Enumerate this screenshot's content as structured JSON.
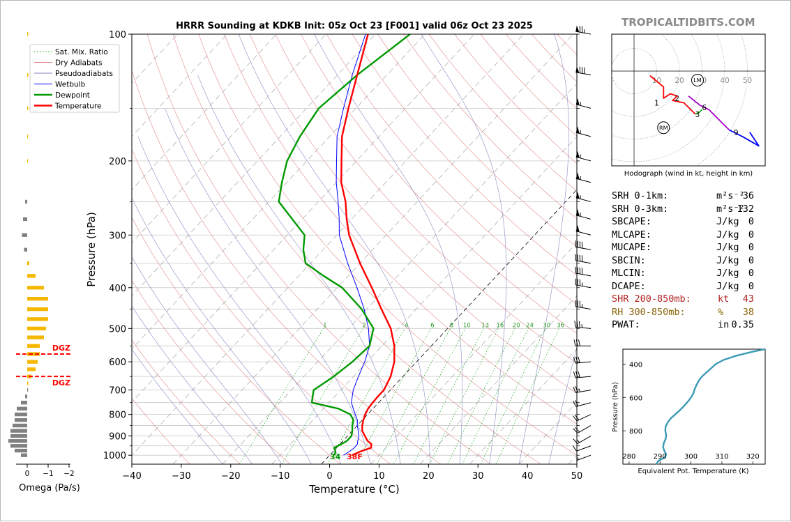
{
  "title": "HRRR Sounding at KDKB Init: 05z Oct 23 [F001] valid 06z Oct 23 2025",
  "logo": "TROPICALTIDBITS.COM",
  "colors": {
    "temperature": "#ff0000",
    "dewpoint": "#009900",
    "wetbulb": "#0000ff",
    "dry_adiabat": "#e08080",
    "pseudoadiabat": "#8080c0",
    "mixing_ratio": "#22aa22",
    "omega_up": "#f5b800",
    "omega_down": "#808080",
    "dgz": "#ff0000",
    "theta_e": "#3a9ab5"
  },
  "chart_data": [
    {
      "type": "line",
      "name": "skewt",
      "xlabel": "Temperature (°C)",
      "ylabel": "Pressure (hPa)",
      "xlim": [
        -40,
        50
      ],
      "ylim": [
        1050,
        100
      ],
      "x_ticks": [
        "−40",
        "−30",
        "−20",
        "−10",
        "0",
        "10",
        "20",
        "30",
        "40",
        "50"
      ],
      "x_tick_values": [
        -40,
        -30,
        -20,
        -10,
        0,
        10,
        20,
        30,
        40,
        50
      ],
      "y_ticks": [
        1000,
        900,
        800,
        700,
        600,
        500,
        400,
        300,
        200,
        100
      ],
      "legend": [
        "Sat. Mix. Ratio",
        "Dry Adiabats",
        "Pseudoadiabats",
        "Wetbulb",
        "Dewpoint",
        "Temperature"
      ],
      "legend_location": "upper-left",
      "mixing_ratio_labels": [
        "1",
        "2",
        "4",
        "6",
        "8",
        "10",
        "13",
        "16",
        "20",
        "24",
        "30",
        "36"
      ],
      "surface_dewpoint_label": "34",
      "surface_temperature_label": "38F",
      "temperature": {
        "p": [
          1000,
          980,
          960,
          940,
          925,
          900,
          875,
          850,
          825,
          800,
          775,
          750,
          725,
          700,
          650,
          600,
          550,
          500,
          450,
          400,
          350,
          300,
          275,
          250,
          225,
          200,
          175,
          150,
          125,
          100
        ],
        "t": [
          4.5,
          5.5,
          7.0,
          6.3,
          5.0,
          3.5,
          2.0,
          1.0,
          0.2,
          -0.5,
          -1.0,
          -1.2,
          -1.3,
          -1.3,
          -2.5,
          -4.5,
          -7.5,
          -11.5,
          -17.0,
          -23.0,
          -30.0,
          -37.5,
          -41.0,
          -44.5,
          -49.0,
          -53.0,
          -57.5,
          -61.5,
          -66.0,
          -71.5
        ]
      },
      "dewpoint": {
        "p": [
          1000,
          980,
          960,
          940,
          925,
          900,
          875,
          850,
          825,
          800,
          775,
          750,
          725,
          700,
          650,
          600,
          550,
          500,
          450,
          400,
          375,
          350,
          325,
          300,
          275,
          250,
          225,
          200,
          175,
          150,
          125,
          100
        ],
        "td": [
          1.0,
          0.5,
          -0.5,
          0.3,
          0.8,
          0.8,
          0.0,
          -1.0,
          -1.8,
          -3.5,
          -7.0,
          -13.5,
          -14.5,
          -15.5,
          -14.0,
          -13.0,
          -12.5,
          -15.0,
          -21.0,
          -29.0,
          -35.0,
          -41.0,
          -44.0,
          -46.5,
          -52.0,
          -58.0,
          -61.0,
          -64.0,
          -66.0,
          -67.5,
          -66.0,
          -63.0
        ]
      },
      "wetbulb": {
        "p": [
          1000,
          980,
          960,
          940,
          925,
          900,
          875,
          850,
          825,
          800,
          775,
          750,
          725,
          700,
          650,
          600,
          550,
          500,
          450,
          400,
          350,
          300,
          275,
          250,
          225,
          200,
          175,
          150,
          125,
          100
        ],
        "tw": [
          2.8,
          3.3,
          3.6,
          3.5,
          3.0,
          2.3,
          1.2,
          0.0,
          -1.0,
          -2.5,
          -4.0,
          -5.5,
          -6.5,
          -7.5,
          -9.0,
          -10.5,
          -12.5,
          -16.0,
          -20.5,
          -26.0,
          -32.5,
          -39.5,
          -42.5,
          -46.0,
          -50.0,
          -54.0,
          -58.5,
          -62.5,
          -67.0,
          -72.0
        ]
      }
    },
    {
      "type": "bar",
      "name": "omega",
      "xlabel": "Omega (Pa/s)",
      "x_ticks": [
        "0",
        "−1",
        "−2"
      ],
      "x_tick_values": [
        0,
        -1,
        -2
      ],
      "dgz_label": "DGZ",
      "dgz_top_hPa": 575,
      "dgz_bottom_hPa": 650,
      "p": [
        1000,
        975,
        950,
        925,
        900,
        875,
        850,
        825,
        800,
        775,
        750,
        725,
        700,
        675,
        650,
        625,
        600,
        575,
        550,
        525,
        500,
        475,
        450,
        425,
        400,
        375,
        350,
        325,
        300,
        275,
        250,
        200,
        175,
        150,
        125,
        100
      ],
      "omega": [
        0.3,
        0.6,
        0.8,
        0.9,
        0.8,
        0.8,
        0.7,
        0.6,
        0.6,
        0.5,
        0.3,
        0.1,
        0.0,
        -0.05,
        -0.2,
        -0.4,
        -0.5,
        -0.6,
        -0.6,
        -0.8,
        -0.9,
        -1.0,
        -1.0,
        -1.0,
        -0.8,
        -0.4,
        -0.1,
        0.15,
        0.25,
        0.2,
        0.1,
        -0.02,
        -0.02,
        -0.05,
        -0.05,
        -0.05
      ]
    },
    {
      "type": "line",
      "name": "hodograph",
      "xlabel": "Hodograph (wind in kt, height in km)",
      "ring_labels": [
        "10",
        "20",
        "30",
        "40",
        "50"
      ],
      "ring_values": [
        10,
        20,
        30,
        40,
        50
      ],
      "storm_motion_labels": [
        "LM",
        "RM"
      ],
      "left_mover": [
        28,
        -4
      ],
      "right_mover": [
        13,
        -25
      ],
      "height_labels": [
        {
          "text": "1",
          "u": 10,
          "v": -14
        },
        {
          "text": "2",
          "u": 19,
          "v": -12
        },
        {
          "text": "3",
          "u": 28,
          "v": -19
        },
        {
          "text": "6",
          "u": 31,
          "v": -16
        },
        {
          "text": "9",
          "u": 45,
          "v": -27
        }
      ],
      "segments": [
        {
          "color": "#ff0000",
          "points": [
            [
              7,
              -2
            ],
            [
              13,
              -7
            ],
            [
              13,
              -12
            ],
            [
              16,
              -10
            ],
            [
              19,
              -11
            ],
            [
              17,
              -13
            ],
            [
              22,
              -14
            ],
            [
              27,
              -19
            ]
          ]
        },
        {
          "color": "#22aa22",
          "points": [
            [
              27,
              -19
            ],
            [
              29,
              -18
            ],
            [
              30,
              -17
            ]
          ]
        },
        {
          "color": "#aa00cc",
          "points": [
            [
              24,
              -11
            ],
            [
              29,
              -15
            ],
            [
              33,
              -17
            ],
            [
              38,
              -22
            ],
            [
              42,
              -26
            ]
          ]
        },
        {
          "color": "#0000ff",
          "points": [
            [
              42,
              -26
            ],
            [
              48,
              -29
            ],
            [
              55,
              -33
            ],
            [
              51,
              -27
            ]
          ]
        }
      ]
    },
    {
      "type": "line",
      "name": "theta_e",
      "xlabel": "Equivalent Pot. Temperature (K)",
      "ylabel": "Pressure (hPa)",
      "xlim": [
        278,
        324
      ],
      "ylim": [
        1000,
        310
      ],
      "x_ticks": [
        "280",
        "290",
        "300",
        "310",
        "320"
      ],
      "x_tick_values": [
        280,
        290,
        300,
        310,
        320
      ],
      "y_ticks": [
        "400",
        "600",
        "800"
      ],
      "y_tick_values": [
        400,
        600,
        800
      ],
      "p": [
        1000,
        980,
        960,
        940,
        925,
        900,
        875,
        850,
        825,
        800,
        775,
        750,
        725,
        700,
        675,
        650,
        625,
        600,
        575,
        550,
        525,
        500,
        475,
        450,
        425,
        400,
        375,
        350,
        325,
        310
      ],
      "theta_e": [
        288.8,
        289.5,
        291.5,
        292.0,
        291.5,
        291.0,
        291.2,
        291.8,
        292.0,
        291.7,
        291.8,
        292.5,
        293.5,
        295.0,
        296.5,
        297.8,
        299.0,
        300.0,
        300.8,
        301.2,
        301.8,
        302.5,
        303.5,
        305.0,
        306.5,
        308.0,
        310.5,
        314.5,
        320.0,
        324.0
      ]
    }
  ],
  "stats": [
    {
      "label": "SRH 0-1km:",
      "value": "36",
      "unit": "m²s⁻²",
      "color": "#000000"
    },
    {
      "label": "SRH 0-3km:",
      "value": "132",
      "unit": "m²s⁻²",
      "color": "#000000"
    },
    {
      "label": "SBCAPE:",
      "value": "0",
      "unit": "J/kg",
      "color": "#000000"
    },
    {
      "label": "MLCAPE:",
      "value": "0",
      "unit": "J/kg",
      "color": "#000000"
    },
    {
      "label": "MUCAPE:",
      "value": "0",
      "unit": "J/kg",
      "color": "#000000"
    },
    {
      "label": "SBCIN:",
      "value": "0",
      "unit": "J/kg",
      "color": "#000000"
    },
    {
      "label": "MLCIN:",
      "value": "0",
      "unit": "J/kg",
      "color": "#000000"
    },
    {
      "label": "DCAPE:",
      "value": "0",
      "unit": "J/kg",
      "color": "#000000"
    },
    {
      "label": "SHR 200-850mb:",
      "value": "43",
      "unit": "kt",
      "color": "#b22222"
    },
    {
      "label": "RH 300-850mb:",
      "value": "38",
      "unit": "%",
      "color": "#8b6508"
    },
    {
      "label": "PWAT:",
      "value": "0.35",
      "unit": "in",
      "color": "#000000"
    }
  ],
  "wind_barbs": [
    {
      "p": 100,
      "speed": 75,
      "dir": 280
    },
    {
      "p": 125,
      "speed": 80,
      "dir": 280
    },
    {
      "p": 150,
      "speed": 55,
      "dir": 285
    },
    {
      "p": 175,
      "speed": 55,
      "dir": 285
    },
    {
      "p": 200,
      "speed": 55,
      "dir": 285
    },
    {
      "p": 225,
      "speed": 55,
      "dir": 285
    },
    {
      "p": 250,
      "speed": 55,
      "dir": 285
    },
    {
      "p": 275,
      "speed": 55,
      "dir": 285
    },
    {
      "p": 300,
      "speed": 50,
      "dir": 285
    },
    {
      "p": 325,
      "speed": 40,
      "dir": 280
    },
    {
      "p": 350,
      "speed": 40,
      "dir": 280
    },
    {
      "p": 375,
      "speed": 40,
      "dir": 280
    },
    {
      "p": 400,
      "speed": 35,
      "dir": 280
    },
    {
      "p": 450,
      "speed": 35,
      "dir": 280
    },
    {
      "p": 500,
      "speed": 35,
      "dir": 275
    },
    {
      "p": 550,
      "speed": 30,
      "dir": 270
    },
    {
      "p": 600,
      "speed": 30,
      "dir": 265
    },
    {
      "p": 650,
      "speed": 30,
      "dir": 265
    },
    {
      "p": 700,
      "speed": 25,
      "dir": 260
    },
    {
      "p": 750,
      "speed": 20,
      "dir": 255
    },
    {
      "p": 800,
      "speed": 20,
      "dir": 245
    },
    {
      "p": 850,
      "speed": 20,
      "dir": 240
    },
    {
      "p": 900,
      "speed": 15,
      "dir": 240
    },
    {
      "p": 950,
      "speed": 10,
      "dir": 250
    },
    {
      "p": 1000,
      "speed": 5,
      "dir": 250
    }
  ]
}
